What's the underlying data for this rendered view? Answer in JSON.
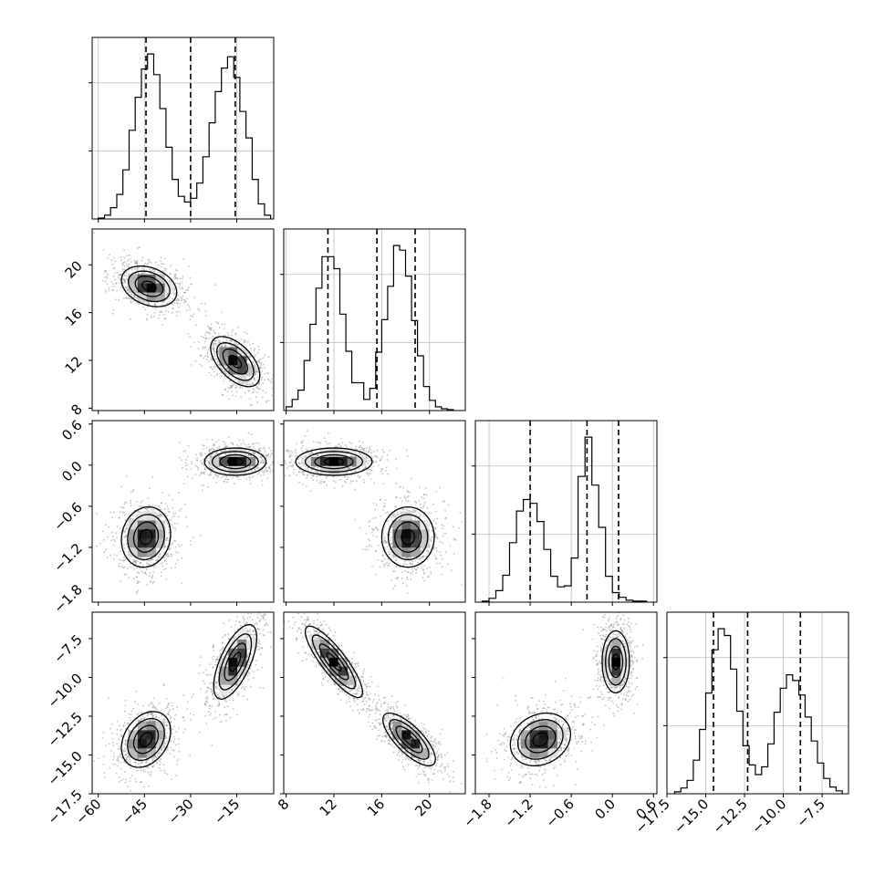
{
  "chart_data": {
    "type": "corner",
    "grid": true,
    "colors": {
      "points": "#7a7a7a",
      "line": "#000000",
      "grid": "#bdbdbd",
      "background": "#ffffff"
    },
    "parameters": [
      {
        "range": [
          -62,
          -3
        ],
        "ticks": [
          -60,
          -45,
          -30,
          -15
        ],
        "tick_labels": [
          "−60",
          "−45",
          "−30",
          "−15"
        ]
      },
      {
        "range": [
          7.8,
          23.0
        ],
        "ticks": [
          8,
          12,
          16,
          20
        ],
        "tick_labels": [
          "8",
          "12",
          "16",
          "20"
        ]
      },
      {
        "range": [
          -2.0,
          0.65
        ],
        "ticks": [
          -1.8,
          -1.2,
          -0.6,
          0.0,
          0.6
        ],
        "tick_labels": [
          "−1.8",
          "−1.2",
          "−0.6",
          "0.0",
          "0.6"
        ]
      },
      {
        "range": [
          -17.5,
          -5.8
        ],
        "ticks": [
          -17.5,
          -15.0,
          -12.5,
          -10.0,
          -7.5
        ],
        "tick_labels": [
          "−17.5",
          "−15.0",
          "−12.5",
          "−10.0",
          "−7.5"
        ]
      }
    ],
    "diagonal": [
      {
        "quantiles": [
          -44.5,
          -30.0,
          -15.5
        ],
        "bin_edges": [
          -60,
          -58,
          -56,
          -54,
          -52,
          -50,
          -48,
          -46,
          -44,
          -42,
          -40,
          -38,
          -36,
          -34,
          -32,
          -30,
          -28,
          -26,
          -24,
          -22,
          -20,
          -18,
          -16,
          -14,
          -12,
          -10,
          -8,
          -6,
          -4
        ],
        "counts": [
          1,
          4,
          12,
          26,
          52,
          94,
          129,
          159,
          175,
          153,
          117,
          76,
          42,
          24,
          18,
          22,
          38,
          66,
          102,
          135,
          160,
          172,
          150,
          114,
          86,
          42,
          16,
          4
        ]
      },
      {
        "quantiles": [
          11.5,
          15.6,
          18.8
        ],
        "bin_edges": [
          8.0,
          8.5,
          9.0,
          9.5,
          10.0,
          10.5,
          11.0,
          11.5,
          12.0,
          12.5,
          13.0,
          13.5,
          14.0,
          14.5,
          15.0,
          15.5,
          16.0,
          16.5,
          17.0,
          17.5,
          18.0,
          18.5,
          19.0,
          19.5,
          20.0,
          20.5,
          21.0,
          21.5,
          22.0
        ],
        "counts": [
          4,
          12,
          22,
          54,
          93,
          132,
          166,
          166,
          153,
          104,
          64,
          30,
          30,
          12,
          24,
          63,
          98,
          134,
          178,
          173,
          145,
          97,
          59,
          26,
          11,
          4,
          2,
          1
        ]
      },
      {
        "quantiles": [
          -1.2,
          -0.37,
          0.09
        ],
        "bin_edges": [
          -1.9,
          -1.8,
          -1.7,
          -1.6,
          -1.5,
          -1.4,
          -1.3,
          -1.2,
          -1.1,
          -1.0,
          -0.9,
          -0.8,
          -0.7,
          -0.6,
          -0.5,
          -0.4,
          -0.3,
          -0.2,
          -0.1,
          0.0,
          0.1,
          0.2,
          0.3,
          0.4,
          0.5
        ],
        "counts": [
          1,
          4,
          12,
          28,
          62,
          95,
          107,
          103,
          84,
          55,
          27,
          16,
          17,
          46,
          131,
          172,
          122,
          78,
          27,
          10,
          5,
          2,
          1,
          1
        ]
      },
      {
        "quantiles": [
          -14.5,
          -12.3,
          -8.9
        ],
        "bin_edges": [
          -17.0,
          -16.6,
          -16.2,
          -15.8,
          -15.4,
          -15.0,
          -14.6,
          -14.2,
          -13.8,
          -13.4,
          -13.0,
          -12.6,
          -12.2,
          -11.8,
          -11.4,
          -11.0,
          -10.6,
          -10.2,
          -9.8,
          -9.4,
          -9.0,
          -8.6,
          -8.2,
          -7.8,
          -7.4,
          -7.0,
          -6.6,
          -6.2
        ],
        "counts": [
          2,
          6,
          14,
          35,
          67,
          105,
          150,
          172,
          165,
          130,
          86,
          50,
          30,
          20,
          28,
          52,
          85,
          110,
          124,
          118,
          103,
          80,
          55,
          32,
          16,
          7,
          3
        ]
      }
    ],
    "off_diagonal": [
      {
        "x": 0,
        "y": 1,
        "modes": [
          {
            "center": [
              -43.5,
              18.2
            ],
            "sd": [
              4.5,
              0.85
            ],
            "rho": -0.3
          },
          {
            "center": [
              -15.5,
              11.9
            ],
            "sd": [
              4.0,
              1.05
            ],
            "rho": -0.55
          }
        ]
      },
      {
        "x": 0,
        "y": 2,
        "modes": [
          {
            "center": [
              -44.5,
              -1.05
            ],
            "sd": [
              4.0,
              0.22
            ],
            "rho": 0.1
          },
          {
            "center": [
              -15.5,
              0.05
            ],
            "sd": [
              5.0,
              0.1
            ],
            "rho": 0.0
          }
        ]
      },
      {
        "x": 1,
        "y": 2,
        "modes": [
          {
            "center": [
              12.0,
              0.05
            ],
            "sd": [
              1.6,
              0.1
            ],
            "rho": 0.0
          },
          {
            "center": [
              18.2,
              -1.05
            ],
            "sd": [
              1.1,
              0.22
            ],
            "rho": 0.0
          }
        ]
      },
      {
        "x": 0,
        "y": 3,
        "modes": [
          {
            "center": [
              -44.5,
              -14.0
            ],
            "sd": [
              4.0,
              0.9
            ],
            "rho": 0.3
          },
          {
            "center": [
              -15.5,
              -9.0
            ],
            "sd": [
              3.5,
              1.2
            ],
            "rho": 0.65
          }
        ]
      },
      {
        "x": 1,
        "y": 3,
        "modes": [
          {
            "center": [
              12.0,
              -9.0
            ],
            "sd": [
              1.2,
              1.15
            ],
            "rho": -0.85
          },
          {
            "center": [
              18.3,
              -14.0
            ],
            "sd": [
              1.1,
              0.85
            ],
            "rho": -0.75
          }
        ]
      },
      {
        "x": 2,
        "y": 3,
        "modes": [
          {
            "center": [
              -1.05,
              -14.0
            ],
            "sd": [
              0.22,
              0.85
            ],
            "rho": 0.2
          },
          {
            "center": [
              0.05,
              -9.0
            ],
            "sd": [
              0.1,
              1.0
            ],
            "rho": 0.0
          }
        ]
      }
    ],
    "contour_levels": [
      0.5,
      1.0,
      1.5,
      2.0
    ]
  }
}
